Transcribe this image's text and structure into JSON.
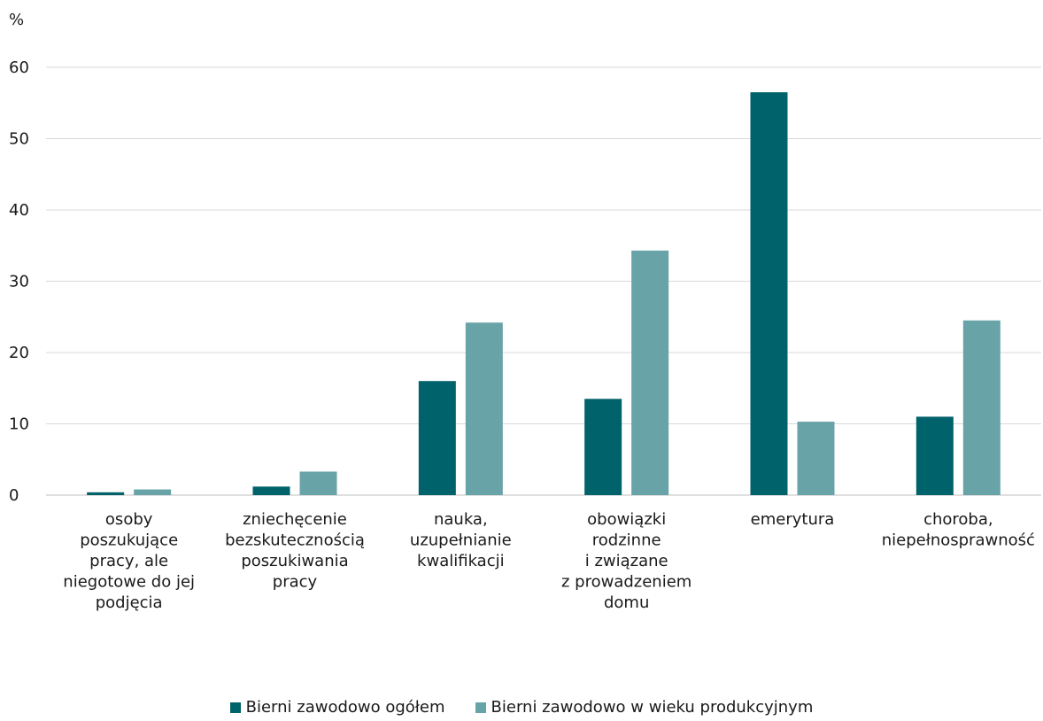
{
  "chart_data": {
    "type": "bar",
    "unit_label": "%",
    "categories": [
      [
        "osoby",
        "poszukujące",
        "pracy, ale",
        "niegotowe do jej",
        "podjęcia"
      ],
      [
        "zniechęcenie",
        "bezskutecznością",
        "poszukiwania",
        "pracy"
      ],
      [
        "nauka,",
        "uzupełnianie",
        "kwalifikacji"
      ],
      [
        "obowiązki",
        "rodzinne",
        "i związane",
        "z prowadzeniem",
        "domu"
      ],
      [
        "emerytura"
      ],
      [
        "choroba,",
        "niepełnosprawność"
      ]
    ],
    "series": [
      {
        "name": "Bierni zawodowo ogółem",
        "color": "#00626a",
        "values": [
          0.4,
          1.2,
          16.0,
          13.5,
          56.5,
          11.0
        ]
      },
      {
        "name": "Bierni zawodowo w wieku produkcyjnym",
        "color": "#68a3a7",
        "values": [
          0.8,
          3.3,
          24.2,
          34.3,
          10.3,
          24.5
        ]
      }
    ],
    "yticks": [
      0,
      10,
      20,
      30,
      40,
      50,
      60
    ],
    "ylim": [
      0,
      60
    ],
    "grid": true,
    "legend_position": "bottom-center"
  }
}
